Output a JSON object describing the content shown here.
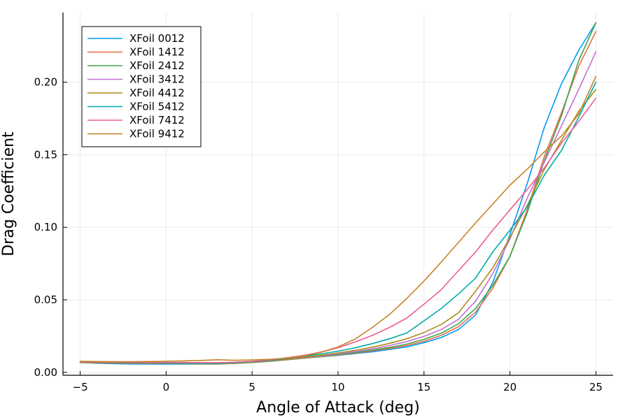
{
  "chart_data": {
    "type": "line",
    "title": "",
    "xlabel": "Angle of Attack (deg)",
    "ylabel": "Drag Coefficient",
    "xlim": [
      -6,
      26
    ],
    "ylim": [
      -0.002,
      0.248
    ],
    "xticks": [
      -5,
      0,
      5,
      10,
      15,
      20,
      25
    ],
    "yticks": [
      0.0,
      0.05,
      0.1,
      0.15,
      0.2
    ],
    "ytick_labels": [
      "0.00",
      "0.05",
      "0.10",
      "0.15",
      "0.20"
    ],
    "grid": true,
    "legend_position": "top-left",
    "x": [
      -5,
      -4,
      -3,
      -2,
      -1,
      0,
      1,
      2,
      3,
      4,
      5,
      6,
      7,
      8,
      9,
      10,
      11,
      12,
      13,
      14,
      15,
      16,
      17,
      18,
      19,
      20,
      21,
      22,
      23,
      24,
      25
    ],
    "series": [
      {
        "name": "XFoil 0012",
        "color": "#009AFA",
        "values": [
          0.0068,
          0.0063,
          0.006,
          0.0058,
          0.0057,
          0.0057,
          0.0057,
          0.0058,
          0.006,
          0.0064,
          0.007,
          0.0078,
          0.0088,
          0.0098,
          0.0108,
          0.0118,
          0.013,
          0.0142,
          0.0158,
          0.0176,
          0.0205,
          0.024,
          0.0295,
          0.0395,
          0.062,
          0.095,
          0.13,
          0.169,
          0.199,
          0.222,
          0.241
        ]
      },
      {
        "name": "XFoil 1412",
        "color": "#E36F47",
        "values": [
          0.0068,
          0.0065,
          0.0063,
          0.0062,
          0.0061,
          0.0061,
          0.006,
          0.0058,
          0.0058,
          0.0062,
          0.0068,
          0.0076,
          0.0086,
          0.0097,
          0.0108,
          0.012,
          0.0133,
          0.0148,
          0.0165,
          0.0185,
          0.0215,
          0.0255,
          0.0315,
          0.0415,
          0.058,
          0.08,
          0.112,
          0.149,
          0.179,
          0.211,
          0.235
        ]
      },
      {
        "name": "XFoil 2412",
        "color": "#3EA44E",
        "values": [
          0.0068,
          0.0066,
          0.0064,
          0.0063,
          0.0062,
          0.0061,
          0.006,
          0.0058,
          0.0058,
          0.0062,
          0.0068,
          0.0077,
          0.0088,
          0.0099,
          0.011,
          0.0123,
          0.0137,
          0.0153,
          0.0172,
          0.0195,
          0.0228,
          0.027,
          0.0335,
          0.044,
          0.06,
          0.08,
          0.11,
          0.146,
          0.177,
          0.215,
          0.241
        ]
      },
      {
        "name": "XFoil 3412",
        "color": "#C271D2",
        "values": [
          0.007,
          0.0068,
          0.0066,
          0.0065,
          0.0064,
          0.0063,
          0.0062,
          0.006,
          0.006,
          0.0064,
          0.007,
          0.0079,
          0.009,
          0.0101,
          0.0114,
          0.0128,
          0.0144,
          0.0162,
          0.0185,
          0.0212,
          0.0248,
          0.0295,
          0.0365,
          0.049,
          0.068,
          0.092,
          0.12,
          0.145,
          0.17,
          0.195,
          0.221
        ]
      },
      {
        "name": "XFoil 4412",
        "color": "#AC8D18",
        "values": [
          0.007,
          0.0068,
          0.0066,
          0.0065,
          0.0064,
          0.0063,
          0.0062,
          0.006,
          0.006,
          0.0064,
          0.007,
          0.008,
          0.0091,
          0.0104,
          0.0118,
          0.0134,
          0.0152,
          0.0174,
          0.02,
          0.0232,
          0.0275,
          0.033,
          0.041,
          0.056,
          0.072,
          0.093,
          0.115,
          0.14,
          0.16,
          0.18,
          0.195
        ]
      },
      {
        "name": "XFoil 5412",
        "color": "#00A9AD",
        "values": [
          0.0072,
          0.007,
          0.0068,
          0.0067,
          0.0066,
          0.0065,
          0.0064,
          0.0062,
          0.0062,
          0.0066,
          0.0073,
          0.0083,
          0.0095,
          0.011,
          0.0127,
          0.0146,
          0.017,
          0.0198,
          0.0232,
          0.0272,
          0.0355,
          0.044,
          0.054,
          0.065,
          0.083,
          0.098,
          0.114,
          0.136,
          0.153,
          0.176,
          0.2
        ]
      },
      {
        "name": "XFoil 7412",
        "color": "#ED5D92",
        "values": [
          0.0072,
          0.0071,
          0.007,
          0.0069,
          0.0068,
          0.0068,
          0.0068,
          0.0067,
          0.0067,
          0.007,
          0.0076,
          0.0086,
          0.01,
          0.0117,
          0.014,
          0.017,
          0.021,
          0.0255,
          0.031,
          0.0375,
          0.047,
          0.057,
          0.07,
          0.083,
          0.098,
          0.112,
          0.126,
          0.141,
          0.158,
          0.173,
          0.189
        ]
      },
      {
        "name": "XFoil 9412",
        "color": "#C68225",
        "values": [
          0.0076,
          0.0075,
          0.0074,
          0.0074,
          0.0075,
          0.0077,
          0.0079,
          0.0082,
          0.0087,
          0.0083,
          0.0086,
          0.009,
          0.0097,
          0.0112,
          0.0138,
          0.0175,
          0.023,
          0.031,
          0.04,
          0.051,
          0.063,
          0.076,
          0.0895,
          0.103,
          0.116,
          0.129,
          0.14,
          0.152,
          0.163,
          0.178,
          0.204
        ]
      }
    ]
  }
}
